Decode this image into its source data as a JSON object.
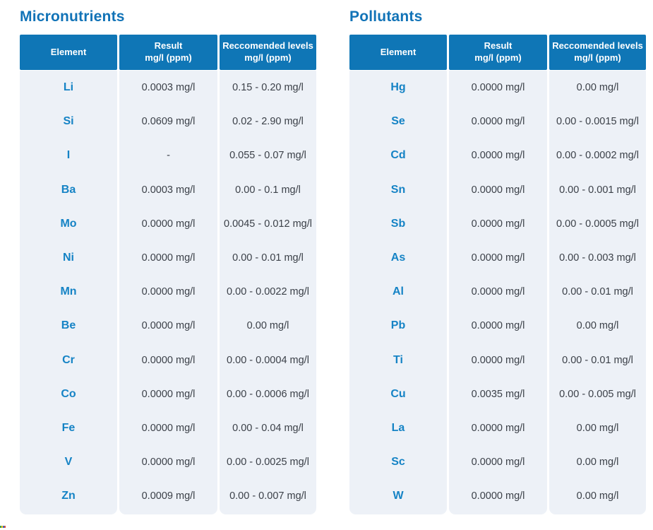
{
  "accent_color": "#0f76b6",
  "body_row_color": "#edf1f7",
  "element_symbol_color": "#1583c5",
  "value_text_color": "#3b4048",
  "tables": [
    {
      "title": "Micronutrients",
      "headers": [
        {
          "line1": "Element",
          "line2": ""
        },
        {
          "line1": "Result",
          "line2": "mg/l (ppm)"
        },
        {
          "line1": "Reccomended levels",
          "line2": "mg/l (ppm)"
        }
      ],
      "rows": [
        [
          "Li",
          "0.0003 mg/l",
          "0.15 - 0.20 mg/l"
        ],
        [
          "Si",
          "0.0609 mg/l",
          "0.02 - 2.90 mg/l"
        ],
        [
          "I",
          "-",
          "0.055 - 0.07 mg/l"
        ],
        [
          "Ba",
          "0.0003 mg/l",
          "0.00 - 0.1 mg/l"
        ],
        [
          "Mo",
          "0.0000 mg/l",
          "0.0045 - 0.012 mg/l"
        ],
        [
          "Ni",
          "0.0000 mg/l",
          "0.00 - 0.01 mg/l"
        ],
        [
          "Mn",
          "0.0000 mg/l",
          "0.00 - 0.0022 mg/l"
        ],
        [
          "Be",
          "0.0000 mg/l",
          "0.00 mg/l"
        ],
        [
          "Cr",
          "0.0000 mg/l",
          "0.00 - 0.0004 mg/l"
        ],
        [
          "Co",
          "0.0000 mg/l",
          "0.00 - 0.0006 mg/l"
        ],
        [
          "Fe",
          "0.0000 mg/l",
          "0.00 - 0.04 mg/l"
        ],
        [
          "V",
          "0.0000 mg/l",
          "0.00 - 0.0025 mg/l"
        ],
        [
          "Zn",
          "0.0009 mg/l",
          "0.00 - 0.007 mg/l"
        ]
      ]
    },
    {
      "title": "Pollutants",
      "headers": [
        {
          "line1": "Element",
          "line2": ""
        },
        {
          "line1": "Result",
          "line2": "mg/l (ppm)"
        },
        {
          "line1": "Reccomended levels",
          "line2": "mg/l (ppm)"
        }
      ],
      "rows": [
        [
          "Hg",
          "0.0000 mg/l",
          "0.00 mg/l"
        ],
        [
          "Se",
          "0.0000 mg/l",
          "0.00 - 0.0015 mg/l"
        ],
        [
          "Cd",
          "0.0000 mg/l",
          "0.00 - 0.0002 mg/l"
        ],
        [
          "Sn",
          "0.0000 mg/l",
          "0.00 - 0.001 mg/l"
        ],
        [
          "Sb",
          "0.0000 mg/l",
          "0.00 - 0.0005 mg/l"
        ],
        [
          "As",
          "0.0000 mg/l",
          "0.00 - 0.003 mg/l"
        ],
        [
          "Al",
          "0.0000 mg/l",
          "0.00 - 0.01 mg/l"
        ],
        [
          "Pb",
          "0.0000 mg/l",
          "0.00 mg/l"
        ],
        [
          "Ti",
          "0.0000 mg/l",
          "0.00 - 0.01 mg/l"
        ],
        [
          "Cu",
          "0.0035 mg/l",
          "0.00 - 0.005 mg/l"
        ],
        [
          "La",
          "0.0000 mg/l",
          "0.00 mg/l"
        ],
        [
          "Sc",
          "0.0000 mg/l",
          "0.00 mg/l"
        ],
        [
          "W",
          "0.0000 mg/l",
          "0.00 mg/l"
        ]
      ]
    }
  ],
  "column_keys": [
    "element",
    "result",
    "recommended"
  ],
  "logo_fragment_colors": [
    "#3a9e4c",
    "#f5c51e",
    "#3569c8",
    "#d95040"
  ]
}
